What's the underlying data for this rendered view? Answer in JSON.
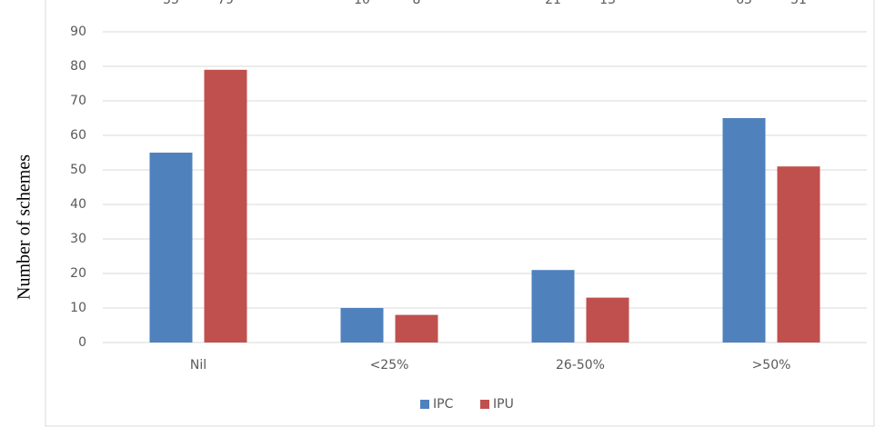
{
  "chart_data": {
    "type": "bar",
    "y_label": "Number of schemes",
    "categories": [
      "Nil",
      "<25%",
      "26-50%",
      ">50%"
    ],
    "series": [
      {
        "name": "IPC",
        "color": "#4f81bd",
        "values": [
          55,
          10,
          21,
          65
        ]
      },
      {
        "name": "IPU",
        "color": "#c0504d",
        "values": [
          79,
          8,
          13,
          51
        ]
      }
    ],
    "ylim": [
      0,
      90
    ],
    "yticks": [
      0,
      10,
      20,
      30,
      40,
      50,
      60,
      70,
      80,
      90
    ],
    "grid": true,
    "legend": "bottom"
  }
}
